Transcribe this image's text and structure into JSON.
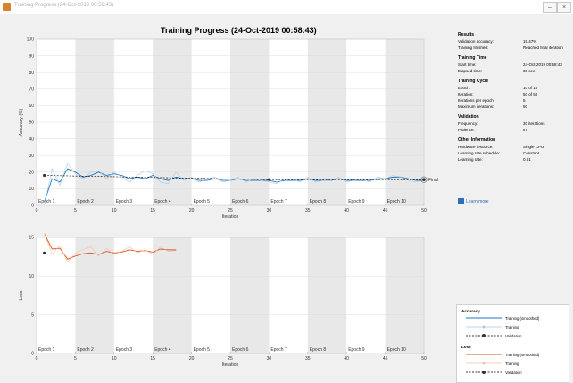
{
  "window": {
    "title": "Training Progress (24-Oct-2019 00:58:43)",
    "minimize": "–",
    "close": "×"
  },
  "plot_title": "Training Progress (24-Oct-2019 00:58:43)",
  "accuracy_plot": {
    "ylabel": "Accuracy (%)",
    "xlabel": "Iteration",
    "yticks": [
      "0",
      "10",
      "20",
      "30",
      "40",
      "50",
      "60",
      "70",
      "80",
      "90",
      "100"
    ],
    "xticks": [
      "0",
      "5",
      "10",
      "15",
      "20",
      "25",
      "30",
      "35",
      "40",
      "45",
      "50"
    ],
    "epochs": [
      "Epoch 1",
      "Epoch 2",
      "Epoch 3",
      "Epoch 4",
      "Epoch 5",
      "Epoch 6",
      "Epoch 7",
      "Epoch 8",
      "Epoch 9",
      "Epoch 10"
    ],
    "final_label": "Final"
  },
  "loss_plot": {
    "ylabel": "Loss",
    "xlabel": "Iteration",
    "yticks": [
      "0",
      "5",
      "10",
      "15"
    ],
    "xticks": [
      "0",
      "5",
      "10",
      "15",
      "20",
      "25",
      "30",
      "35",
      "40",
      "45",
      "50"
    ],
    "epochs": [
      "Epoch 1",
      "Epoch 2",
      "Epoch 3",
      "Epoch 4",
      "Epoch 5",
      "Epoch 6",
      "Epoch 7",
      "Epoch 8",
      "Epoch 9",
      "Epoch 10"
    ]
  },
  "chart_data": [
    {
      "type": "line",
      "title": "",
      "xlabel": "Iteration",
      "ylabel": "Accuracy (%)",
      "xlim": [
        0,
        50
      ],
      "ylim": [
        0,
        100
      ],
      "series": [
        {
          "name": "Training (smoothed)",
          "color": "#1f77c4",
          "x": [
            1,
            2,
            3,
            4,
            5,
            6,
            7,
            8,
            9,
            10,
            11,
            12,
            13,
            14,
            15,
            16,
            17,
            18,
            19,
            20,
            21,
            22,
            23,
            24,
            25,
            26,
            27,
            28,
            29,
            30,
            31,
            32,
            33,
            34,
            35,
            36,
            37,
            38,
            39,
            40,
            41,
            42,
            43,
            44,
            45,
            46,
            47,
            48,
            49,
            50
          ],
          "y": [
            2,
            16,
            14,
            22,
            20,
            17,
            18,
            20,
            18,
            19,
            18,
            16,
            17,
            16,
            18,
            16,
            15,
            17,
            16,
            16,
            15,
            15,
            16,
            15,
            15,
            16,
            15,
            15,
            15,
            15,
            14,
            15,
            15,
            15,
            16,
            15,
            15,
            15,
            16,
            15,
            15,
            15,
            15,
            16,
            16,
            17,
            17,
            16,
            15,
            15
          ]
        },
        {
          "name": "Training",
          "color": "#a8c8ea",
          "x": [
            1,
            2,
            3,
            4,
            5,
            6,
            7,
            8,
            9,
            10,
            11,
            12,
            13,
            14,
            15,
            16,
            17,
            18,
            19,
            20,
            21,
            22,
            23,
            24,
            25,
            26,
            27,
            28,
            29,
            30,
            31,
            32,
            33,
            34,
            35,
            36,
            37,
            38,
            39,
            40,
            41,
            42,
            43,
            44,
            45,
            46,
            47,
            48,
            49,
            50
          ],
          "y": [
            0,
            22,
            12,
            25,
            19,
            16,
            20,
            21,
            16,
            20,
            17,
            14,
            18,
            21,
            19,
            14,
            13,
            20,
            15,
            17,
            14,
            16,
            17,
            14,
            15,
            17,
            14,
            16,
            15,
            14,
            13,
            16,
            16,
            14,
            17,
            14,
            15,
            15,
            17,
            14,
            15,
            16,
            14,
            17,
            16,
            18,
            17,
            15,
            14,
            15
          ]
        },
        {
          "name": "Validation",
          "color": "#000000",
          "x": [
            1,
            30,
            50
          ],
          "y": [
            18,
            15.5,
            15.5
          ]
        }
      ]
    },
    {
      "type": "line",
      "title": "",
      "xlabel": "Iteration",
      "ylabel": "Loss",
      "xlim": [
        0,
        50
      ],
      "ylim": [
        0,
        15
      ],
      "series": [
        {
          "name": "Training (smoothed)",
          "color": "#d9541e",
          "x": [
            1,
            2,
            3,
            4,
            5,
            6,
            7,
            8,
            9,
            10,
            11,
            12,
            13,
            14,
            15,
            16,
            17,
            18
          ],
          "y": [
            15.5,
            13.5,
            13.6,
            12.2,
            12.6,
            12.9,
            13.0,
            12.8,
            13.2,
            13.0,
            13.1,
            13.4,
            13.2,
            13.3,
            13.1,
            13.5,
            13.4,
            13.4
          ]
        },
        {
          "name": "Training",
          "color": "#f0c0a8",
          "x": [
            1,
            2,
            3,
            4,
            5,
            6,
            7,
            8,
            9,
            10,
            11,
            12,
            13,
            14,
            15,
            16,
            17,
            18
          ],
          "y": [
            15.5,
            12.8,
            14.0,
            11.8,
            13.0,
            13.4,
            13.8,
            12.6,
            13.6,
            12.8,
            13.2,
            13.8,
            13.0,
            13.4,
            12.8,
            13.8,
            13.2,
            13.3
          ]
        },
        {
          "name": "Validation",
          "color": "#000000",
          "x": [
            1
          ],
          "y": [
            13
          ]
        }
      ]
    }
  ],
  "results": {
    "title": "Results",
    "rows": [
      {
        "k": "Validation accuracy:",
        "v": "15.47%"
      },
      {
        "k": "Training finished:",
        "v": "Reached final iteration"
      }
    ]
  },
  "training_time": {
    "title": "Training Time",
    "rows": [
      {
        "k": "Start time:",
        "v": "24-Oct-2019 00:58:43"
      },
      {
        "k": "Elapsed time:",
        "v": "30 sec"
      }
    ]
  },
  "training_cycle": {
    "title": "Training Cycle",
    "rows": [
      {
        "k": "Epoch:",
        "v": "10 of 10"
      },
      {
        "k": "Iteration:",
        "v": "50 of 50"
      },
      {
        "k": "Iterations per epoch:",
        "v": "5"
      },
      {
        "k": "Maximum iterations:",
        "v": "50"
      }
    ]
  },
  "validation": {
    "title": "Validation",
    "rows": [
      {
        "k": "Frequency:",
        "v": "30 iterations"
      },
      {
        "k": "Patience:",
        "v": "Inf"
      }
    ]
  },
  "other_info": {
    "title": "Other Information",
    "rows": [
      {
        "k": "Hardware resource:",
        "v": "Single CPU"
      },
      {
        "k": "Learning rate schedule:",
        "v": "Constant"
      },
      {
        "k": "Learning rate:",
        "v": "0.01"
      }
    ]
  },
  "learn_more": "Learn more",
  "legend": {
    "accuracy_title": "Accuracy",
    "loss_title": "Loss",
    "accuracy_items": [
      "Training (smoothed)",
      "Training",
      "Validation"
    ],
    "loss_items": [
      "Training (smoothed)",
      "Training",
      "Validation"
    ],
    "colors": {
      "acc_smoothed": "#1f77c4",
      "acc_training": "#a8c8ea",
      "loss_smoothed": "#d9541e",
      "loss_training": "#f0c0a8",
      "validation": "#000000"
    }
  }
}
